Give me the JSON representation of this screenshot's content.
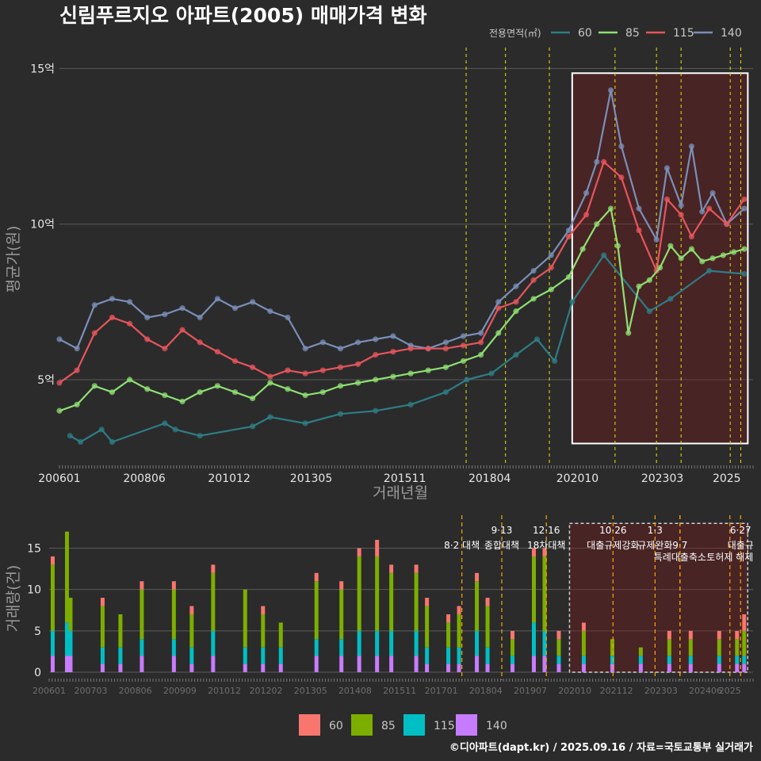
{
  "header": {
    "title": "신림푸르지오 아파트(2005) 매매가격 변화",
    "caption": "©디아파트(dapt.kr) / 2025.09.16 / 자료=국토교통부 실거래가"
  },
  "colors": {
    "s60": "#2e7d85",
    "s85": "#8fe072",
    "s115": "#e8555c",
    "s140": "#7a8fb8",
    "b60": "#f8766d",
    "b85": "#7cae00",
    "b115": "#00bfc4",
    "b140": "#c77cff",
    "policy": "#e6e600",
    "policy_bottom": "#ffa500"
  },
  "chart_data": [
    {
      "type": "line",
      "title": "신림푸르지오 아파트(2005) 매매가격 변화",
      "xlabel": "거래년월",
      "ylabel": "평균가(원)",
      "xlim": [
        2006.0,
        2025.75
      ],
      "ylim": [
        2.3,
        15.8
      ],
      "x_tick_values": [
        2006.0,
        2008.4167,
        2010.8333,
        2013.1667,
        2015.8333,
        2018.25,
        2020.75,
        2023.1667,
        2025.0
      ],
      "x_tick_labels": [
        "200601",
        "200806",
        "201012",
        "201305",
        "201511",
        "201804",
        "202010",
        "202303",
        "2025"
      ],
      "y_tick_values": [
        5,
        10,
        15
      ],
      "y_tick_labels": [
        "5억",
        "10억",
        "15억"
      ],
      "legend_title": "전용면적(㎡)",
      "legend_position": "top-right",
      "grid": true,
      "highlight_box": {
        "x": [
          2020.6,
          2025.6
        ],
        "y": [
          2.95,
          14.85
        ]
      },
      "policy_lines_x": [
        2017.58,
        2018.7,
        2019.95,
        2021.82,
        2023.0,
        2023.7,
        2025.1,
        2025.4
      ],
      "series": [
        {
          "name": "60",
          "x": [
            2006.3,
            2006.6,
            2007.2,
            2007.5,
            2009.0,
            2009.3,
            2010.0,
            2011.5,
            2012.0,
            2013.0,
            2014.0,
            2015.0,
            2016.0,
            2017.0,
            2017.6,
            2018.3,
            2019.0,
            2019.6,
            2020.1,
            2020.6,
            2021.5,
            2022.8,
            2023.4,
            2024.5,
            2025.5
          ],
          "values": [
            3.2,
            3.0,
            3.4,
            3.0,
            3.6,
            3.4,
            3.2,
            3.5,
            3.8,
            3.6,
            3.9,
            4.0,
            4.2,
            4.6,
            5.0,
            5.2,
            5.8,
            6.3,
            5.6,
            7.5,
            9.0,
            7.2,
            7.6,
            8.5,
            8.4
          ]
        },
        {
          "name": "85",
          "x": [
            2006.0,
            2006.5,
            2007.0,
            2007.5,
            2008.0,
            2008.5,
            2009.0,
            2009.5,
            2010.0,
            2010.5,
            2011.0,
            2011.5,
            2012.0,
            2012.5,
            2013.0,
            2013.5,
            2014.0,
            2014.5,
            2015.0,
            2015.5,
            2016.0,
            2016.5,
            2017.0,
            2017.5,
            2018.0,
            2018.5,
            2019.0,
            2019.5,
            2020.0,
            2020.5,
            2020.9,
            2021.3,
            2021.7,
            2021.9,
            2022.2,
            2022.5,
            2022.8,
            2023.1,
            2023.4,
            2023.7,
            2024.0,
            2024.3,
            2024.6,
            2024.9,
            2025.2,
            2025.5
          ],
          "values": [
            4.0,
            4.2,
            4.8,
            4.6,
            5.0,
            4.7,
            4.5,
            4.3,
            4.6,
            4.8,
            4.6,
            4.4,
            4.9,
            4.7,
            4.5,
            4.6,
            4.8,
            4.9,
            5.0,
            5.1,
            5.2,
            5.3,
            5.4,
            5.6,
            5.8,
            6.5,
            7.2,
            7.6,
            7.9,
            8.3,
            9.2,
            10.0,
            10.5,
            9.3,
            6.5,
            8.0,
            8.2,
            8.6,
            9.3,
            8.9,
            9.2,
            8.8,
            8.9,
            9.0,
            9.1,
            9.2
          ]
        },
        {
          "name": "115",
          "x": [
            2006.0,
            2006.5,
            2007.0,
            2007.5,
            2008.0,
            2008.5,
            2009.0,
            2009.5,
            2010.0,
            2010.5,
            2011.0,
            2011.5,
            2012.0,
            2012.5,
            2013.0,
            2013.5,
            2014.0,
            2014.5,
            2015.0,
            2015.5,
            2016.0,
            2016.5,
            2017.0,
            2017.5,
            2018.0,
            2018.5,
            2019.0,
            2019.5,
            2020.0,
            2020.5,
            2021.0,
            2021.5,
            2022.0,
            2022.5,
            2023.0,
            2023.3,
            2023.7,
            2024.0,
            2024.5,
            2025.0,
            2025.5
          ],
          "values": [
            4.9,
            5.3,
            6.5,
            7.0,
            6.8,
            6.3,
            6.0,
            6.6,
            6.2,
            5.9,
            5.6,
            5.4,
            5.1,
            5.3,
            5.2,
            5.3,
            5.4,
            5.5,
            5.8,
            5.9,
            6.0,
            6.0,
            6.0,
            6.1,
            6.2,
            7.3,
            7.5,
            8.2,
            8.6,
            9.6,
            10.3,
            12.0,
            11.5,
            9.8,
            8.5,
            10.8,
            10.3,
            9.6,
            10.5,
            10.0,
            10.8
          ]
        },
        {
          "name": "140",
          "x": [
            2006.0,
            2006.5,
            2007.0,
            2007.5,
            2008.0,
            2008.5,
            2009.0,
            2009.5,
            2010.0,
            2010.5,
            2011.0,
            2011.5,
            2012.0,
            2012.5,
            2013.0,
            2013.5,
            2014.0,
            2014.5,
            2015.0,
            2015.5,
            2016.0,
            2016.5,
            2017.0,
            2017.5,
            2018.0,
            2018.5,
            2019.0,
            2019.5,
            2020.0,
            2020.5,
            2021.0,
            2021.3,
            2021.7,
            2022.0,
            2022.5,
            2023.0,
            2023.3,
            2023.7,
            2024.0,
            2024.3,
            2024.6,
            2025.0,
            2025.5
          ],
          "values": [
            6.3,
            6.0,
            7.4,
            7.6,
            7.5,
            7.0,
            7.1,
            7.3,
            7.0,
            7.6,
            7.3,
            7.5,
            7.2,
            7.0,
            6.0,
            6.2,
            6.0,
            6.2,
            6.3,
            6.4,
            6.1,
            6.0,
            6.2,
            6.4,
            6.5,
            7.5,
            8.0,
            8.5,
            9.0,
            9.8,
            11.0,
            12.0,
            14.3,
            12.5,
            10.5,
            9.5,
            11.8,
            10.6,
            12.5,
            10.4,
            11.0,
            10.0,
            10.5
          ]
        }
      ]
    },
    {
      "type": "bar",
      "stacked": true,
      "ylabel": "거래량(건)",
      "ylim": [
        0,
        18.5
      ],
      "y_tick_values": [
        0,
        5,
        10,
        15
      ],
      "y_tick_labels": [
        "0",
        "5",
        "10",
        "15"
      ],
      "x_tick_values": [
        2006.0,
        2007.1667,
        2008.4167,
        2009.6667,
        2010.9167,
        2012.0833,
        2013.3333,
        2014.5833,
        2015.8333,
        2017.0,
        2018.25,
        2019.5,
        2020.75,
        2021.9167,
        2023.1667,
        2024.4167,
        2025.1
      ],
      "x_tick_labels": [
        "200601",
        "200703",
        "200806",
        "200909",
        "201012",
        "201202",
        "201305",
        "201408",
        "201511",
        "201701",
        "201804",
        "201907",
        "202010",
        "202112",
        "202303",
        "202406",
        "2025"
      ],
      "legend_position": "bottom",
      "legend_entries": [
        "60",
        "85",
        "115",
        "140"
      ],
      "highlight_box": {
        "x": [
          2020.6,
          2025.6
        ],
        "y": [
          0,
          18
        ]
      },
      "annotations": [
        {
          "x": 2017.58,
          "line1": "",
          "line2": "8·2 대책"
        },
        {
          "x": 2018.7,
          "line1": "9·13",
          "line2": "종합대책"
        },
        {
          "x": 2019.95,
          "line1": "12·16",
          "line2": "18차대책"
        },
        {
          "x": 2021.82,
          "line1": "10·26",
          "line2": "대출규제강화"
        },
        {
          "x": 2023.0,
          "line1": "1·3",
          "line2": "규제완화"
        },
        {
          "x": 2023.7,
          "line1": "",
          "line2": "9·7"
        },
        {
          "x": 2023.7,
          "line1": "",
          "line2": "특례대출축소"
        },
        {
          "x": 2025.1,
          "line1": "",
          "line2": "토허제 해제"
        },
        {
          "x": 2025.4,
          "line1": "6·27",
          "line2": "대출규"
        }
      ],
      "x": [
        2006.1,
        2006.5,
        2006.6,
        2007.5,
        2008.0,
        2008.6,
        2009.5,
        2010.0,
        2010.6,
        2011.5,
        2012.0,
        2012.5,
        2013.5,
        2014.2,
        2014.7,
        2015.2,
        2015.6,
        2016.3,
        2016.6,
        2017.2,
        2017.5,
        2018.0,
        2018.3,
        2019.0,
        2019.6,
        2019.9,
        2020.3,
        2021.0,
        2021.8,
        2022.6,
        2023.4,
        2024.0,
        2024.8,
        2025.3,
        2025.5
      ],
      "series": [
        {
          "name": "60",
          "values": [
            1,
            0,
            0,
            1,
            0,
            1,
            1,
            1,
            1,
            0,
            1,
            0,
            1,
            1,
            1,
            2,
            1,
            1,
            1,
            1,
            1,
            1,
            1,
            1,
            1,
            1,
            1,
            1,
            0,
            0,
            1,
            1,
            1,
            1,
            2
          ]
        },
        {
          "name": "85",
          "values": [
            8,
            11,
            4,
            5,
            4,
            6,
            6,
            4,
            7,
            7,
            4,
            3,
            7,
            6,
            9,
            9,
            7,
            7,
            5,
            3,
            4,
            6,
            5,
            2,
            8,
            9,
            2,
            3,
            2,
            1,
            2,
            2,
            2,
            2,
            3
          ]
        },
        {
          "name": "115",
          "values": [
            3,
            4,
            3,
            2,
            2,
            2,
            2,
            2,
            3,
            2,
            2,
            2,
            2,
            2,
            3,
            3,
            3,
            3,
            2,
            2,
            2,
            3,
            2,
            1,
            4,
            3,
            1,
            1,
            1,
            1,
            1,
            1,
            1,
            1,
            1
          ]
        },
        {
          "name": "140",
          "values": [
            2,
            2,
            2,
            1,
            1,
            2,
            2,
            1,
            2,
            1,
            1,
            1,
            2,
            2,
            2,
            2,
            2,
            2,
            1,
            1,
            1,
            2,
            1,
            1,
            2,
            2,
            1,
            1,
            1,
            1,
            1,
            1,
            1,
            1,
            1
          ]
        }
      ]
    }
  ]
}
